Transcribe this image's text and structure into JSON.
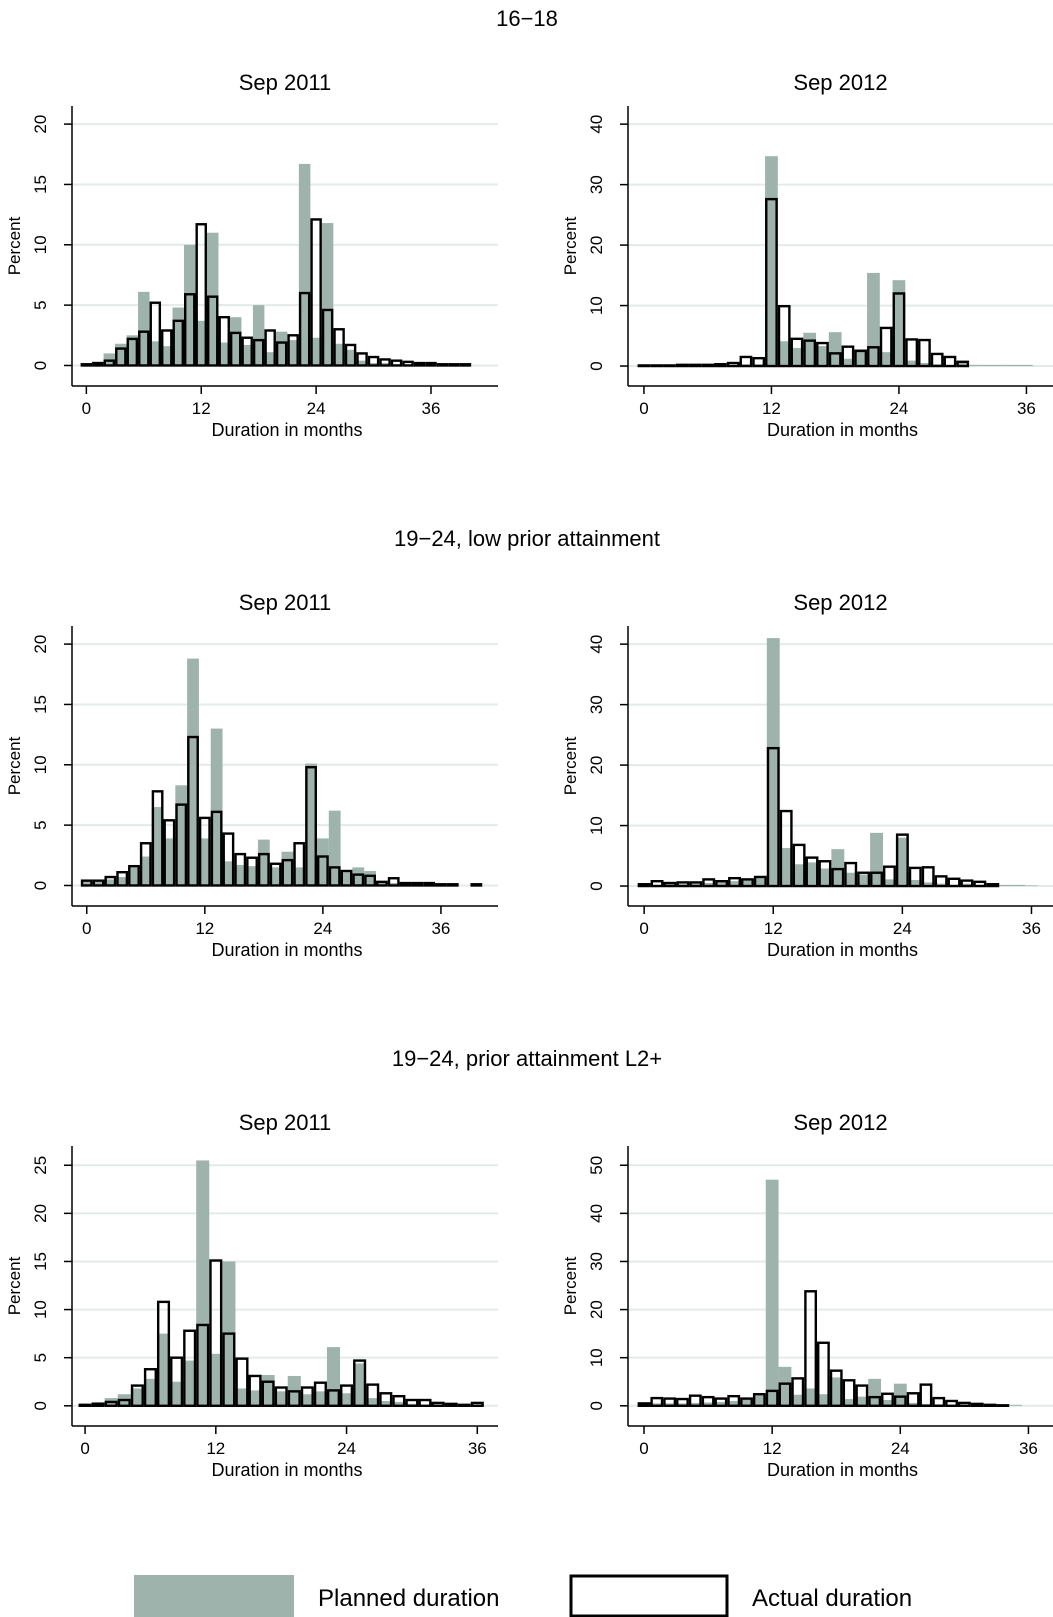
{
  "legend": [
    {
      "label": "Planned duration",
      "color": "#9db3ac"
    },
    {
      "label": "Actual duration",
      "color": "#ffffff",
      "stroke": "#000000"
    }
  ],
  "colors": {
    "planned": "#9db3ac",
    "actual_fill": "#ffffff",
    "actual_stroke": "#000000",
    "grid": "#e3ebea"
  },
  "groups": [
    {
      "title": "16−18"
    },
    {
      "title": "19−24, low prior attainment"
    },
    {
      "title": "19−24, prior attainment L2+"
    }
  ],
  "chart_data": [
    {
      "type": "bar",
      "group": "16−18",
      "title": "Sep 2011",
      "xlabel": "Duration in months",
      "ylabel": "Percent",
      "xlim": [
        -1.5,
        43
      ],
      "ylim": [
        -1.7,
        21.5
      ],
      "xticks": [
        0,
        12,
        24,
        36
      ],
      "yticks": [
        0,
        5,
        10,
        15,
        20
      ],
      "grid": true,
      "bin_width": 1.2,
      "bins": [
        0,
        1.2,
        2.4,
        3.6,
        4.8,
        6,
        7.2,
        8.4,
        9.6,
        10.8,
        12,
        13.2,
        14.4,
        15.6,
        16.8,
        18,
        19.2,
        20.4,
        21.6,
        22.8,
        24,
        25.2,
        26.4,
        27.6,
        28.8,
        30,
        31.2,
        32.4,
        33.6,
        34.8,
        36,
        37.2,
        38.4,
        39.6,
        40.8
      ],
      "series": [
        {
          "name": "Planned duration",
          "values": [
            0.1,
            0.3,
            1,
            1.8,
            2.5,
            6.1,
            2,
            1.6,
            4.8,
            10,
            3.7,
            11,
            1.9,
            4,
            1.7,
            5,
            1.1,
            2.8,
            2.1,
            16.7,
            2.3,
            11.8,
            1.8,
            1.3,
            0.4,
            0.2,
            0.2,
            0.1,
            0.1,
            0.1,
            0.1,
            0.1,
            0,
            0,
            0
          ]
        },
        {
          "name": "Actual duration",
          "values": [
            0.1,
            0.2,
            0.4,
            1.4,
            2.2,
            2.8,
            5.2,
            2.9,
            3.7,
            5.9,
            11.7,
            5.7,
            4,
            2.7,
            2.3,
            2.1,
            2.9,
            1.9,
            2.5,
            6,
            12.1,
            4.6,
            3,
            1.7,
            1,
            0.7,
            0.5,
            0.4,
            0.3,
            0.2,
            0.2,
            0.1,
            0.1,
            0.1,
            0
          ]
        }
      ]
    },
    {
      "type": "bar",
      "group": "16−18",
      "title": "Sep 2012",
      "xlabel": "Duration in months",
      "ylabel": "Percent",
      "xlim": [
        -1.5,
        38.5
      ],
      "ylim": [
        -3.3,
        43
      ],
      "xticks": [
        0,
        12,
        24,
        36
      ],
      "yticks": [
        0,
        10,
        20,
        30,
        40
      ],
      "grid": true,
      "bin_width": 1.2,
      "bins": [
        0,
        1.2,
        2.4,
        3.6,
        4.8,
        6,
        7.2,
        8.4,
        9.6,
        10.8,
        12,
        13.2,
        14.4,
        15.6,
        16.8,
        18,
        19.2,
        20.4,
        21.6,
        22.8,
        24,
        25.2,
        26.4,
        27.6,
        28.8,
        30,
        31.2,
        32.4,
        33.6,
        34.8,
        36
      ],
      "series": [
        {
          "name": "Planned duration",
          "values": [
            0,
            0,
            0,
            0,
            0,
            0,
            0,
            0.1,
            0.3,
            0.3,
            34.7,
            4.1,
            3,
            5.5,
            3.3,
            5.6,
            1.2,
            2.8,
            15.4,
            2.3,
            14.2,
            0.9,
            0.5,
            0.3,
            0.1,
            0.6,
            0.2,
            0.2,
            0.2,
            0.2,
            0.2
          ]
        },
        {
          "name": "Actual duration",
          "values": [
            0.1,
            0.1,
            0.1,
            0.2,
            0.2,
            0.2,
            0.3,
            0.5,
            1.5,
            1.3,
            27.6,
            9.9,
            4.5,
            4.2,
            3.8,
            2.1,
            3.2,
            2.5,
            3.1,
            6.3,
            12,
            4.4,
            4.3,
            2,
            1.5,
            0.7,
            0,
            0,
            0,
            0,
            0
          ]
        }
      ]
    },
    {
      "type": "bar",
      "group": "19−24, low prior attainment",
      "title": "Sep 2011",
      "xlabel": "Duration in months",
      "ylabel": "Percent",
      "xlim": [
        -1.5,
        41.8
      ],
      "ylim": [
        -1.7,
        21.5
      ],
      "xticks": [
        0,
        12,
        24,
        36
      ],
      "yticks": [
        0,
        5,
        10,
        15,
        20
      ],
      "grid": true,
      "bin_width": 1.2,
      "bins": [
        0,
        1.2,
        2.4,
        3.6,
        4.8,
        6,
        7.2,
        8.4,
        9.6,
        10.8,
        12,
        13.2,
        14.4,
        15.6,
        16.8,
        18,
        19.2,
        20.4,
        21.6,
        22.8,
        24,
        25.2,
        26.4,
        27.6,
        28.8,
        30,
        31.2,
        32.4,
        33.6,
        34.8,
        36,
        37.2,
        38.4,
        39.6
      ],
      "series": [
        {
          "name": "Planned duration",
          "values": [
            0.3,
            0.3,
            0.5,
            0.7,
            1.5,
            2.4,
            6.5,
            3.9,
            8.3,
            18.8,
            3.9,
            13,
            2,
            1.7,
            1.6,
            3.8,
            1.5,
            2.8,
            1.5,
            10.1,
            3.9,
            6.2,
            1.1,
            1.5,
            1.2,
            0.3,
            0.2,
            0.2,
            0.1,
            0.1,
            0.1,
            0,
            0,
            0
          ]
        },
        {
          "name": "Actual duration",
          "values": [
            0.4,
            0.4,
            0.7,
            1.1,
            1.6,
            3.5,
            7.8,
            5.4,
            6.7,
            12.3,
            5.6,
            6.1,
            4.3,
            2.6,
            2.3,
            2.6,
            1.8,
            2.1,
            3.5,
            9.8,
            2.4,
            1.5,
            1.2,
            0.9,
            0.8,
            0.3,
            0.6,
            0.2,
            0.2,
            0.2,
            0.1,
            0.1,
            0,
            0.1
          ]
        }
      ]
    },
    {
      "type": "bar",
      "group": "19−24, low prior attainment",
      "title": "Sep 2012",
      "xlabel": "Duration in months",
      "ylabel": "Percent",
      "xlim": [
        -1.5,
        38
      ],
      "ylim": [
        -3.3,
        43
      ],
      "xticks": [
        0,
        12,
        24,
        36
      ],
      "yticks": [
        0,
        10,
        20,
        30,
        40
      ],
      "grid": true,
      "bin_width": 1.2,
      "bins": [
        0,
        1.2,
        2.4,
        3.6,
        4.8,
        6,
        7.2,
        8.4,
        9.6,
        10.8,
        12,
        13.2,
        14.4,
        15.6,
        16.8,
        18,
        19.2,
        20.4,
        21.6,
        22.8,
        24,
        25.2,
        26.4,
        27.6,
        28.8,
        30,
        31.2,
        32.4,
        33.6,
        34.8,
        36
      ],
      "series": [
        {
          "name": "Planned duration",
          "values": [
            0.2,
            0.2,
            0.3,
            0.3,
            0.4,
            0.5,
            0.6,
            0.8,
            1.2,
            1.5,
            41,
            6.3,
            3.6,
            3.9,
            2.9,
            6.1,
            2.2,
            1.9,
            8.8,
            1.1,
            8,
            1,
            0.6,
            0.4,
            0.2,
            0.4,
            0.2,
            0.2,
            0.2,
            0.2,
            0.1
          ]
        },
        {
          "name": "Actual duration",
          "values": [
            0.3,
            0.8,
            0.5,
            0.6,
            0.6,
            1.1,
            0.8,
            1.3,
            1.1,
            1.5,
            22.8,
            12.4,
            6.8,
            4.7,
            4.1,
            2.8,
            3.8,
            2.2,
            2.2,
            3.2,
            8.5,
            3,
            3.1,
            1.6,
            1.2,
            0.9,
            0.7,
            0.3,
            0,
            0,
            0
          ]
        }
      ]
    },
    {
      "type": "bar",
      "group": "19−24, prior attainment L2+",
      "title": "Sep 2011",
      "xlabel": "Duration in months",
      "ylabel": "Percent",
      "xlim": [
        -1.2,
        37.9
      ],
      "ylim": [
        -2.1,
        27
      ],
      "xticks": [
        0,
        12,
        24,
        36
      ],
      "yticks": [
        0,
        5,
        10,
        15,
        20,
        25
      ],
      "grid": true,
      "bin_width": 1.2,
      "bins": [
        0,
        1.2,
        2.4,
        3.6,
        4.8,
        6,
        7.2,
        8.4,
        9.6,
        10.8,
        12,
        13.2,
        14.4,
        15.6,
        16.8,
        18,
        19.2,
        20.4,
        21.6,
        22.8,
        24,
        25.2,
        26.4,
        27.6,
        28.8,
        30,
        31.2,
        32.4,
        33.6,
        34.8,
        36
      ],
      "series": [
        {
          "name": "Planned duration",
          "values": [
            0.2,
            0.4,
            0.8,
            1.2,
            1.8,
            2.8,
            7.5,
            2.5,
            4.7,
            25.5,
            5.4,
            15,
            1.8,
            1.6,
            3.2,
            1.5,
            3.1,
            1.2,
            1.5,
            6.1,
            1.3,
            4.4,
            0.8,
            0.5,
            0.4,
            0.2,
            0.1,
            0.1,
            0.1,
            0.1,
            0
          ]
        },
        {
          "name": "Actual duration",
          "values": [
            0.1,
            0.2,
            0.4,
            0.6,
            2.1,
            3.8,
            10.8,
            5,
            7.8,
            8.4,
            15.1,
            7.5,
            4.9,
            3.1,
            2.5,
            1.9,
            1.5,
            1.9,
            2.4,
            1.6,
            2.1,
            4.7,
            2.2,
            1.3,
            1,
            0.6,
            0.6,
            0.3,
            0.2,
            0.1,
            0.3
          ]
        }
      ]
    },
    {
      "type": "bar",
      "group": "19−24, prior attainment L2+",
      "title": "Sep 2012",
      "xlabel": "Duration in months",
      "ylabel": "Percent",
      "xlim": [
        -1.5,
        38.3
      ],
      "ylim": [
        -4.2,
        54
      ],
      "xticks": [
        0,
        12,
        24,
        36
      ],
      "yticks": [
        0,
        10,
        20,
        30,
        40,
        50
      ],
      "grid": true,
      "bin_width": 1.2,
      "bins": [
        0,
        1.2,
        2.4,
        3.6,
        4.8,
        6,
        7.2,
        8.4,
        9.6,
        10.8,
        12,
        13.2,
        14.4,
        15.6,
        16.8,
        18,
        19.2,
        20.4,
        21.6,
        22.8,
        24,
        25.2,
        26.4,
        27.6,
        28.8,
        30,
        31.2,
        32.4,
        33.6,
        34.8
      ],
      "series": [
        {
          "name": "Planned duration",
          "values": [
            0.7,
            0.5,
            0.5,
            0.5,
            0.6,
            0.7,
            0.8,
            1,
            1.3,
            2.1,
            47,
            8.1,
            2.3,
            3.6,
            2.4,
            5.9,
            1.4,
            1.9,
            5.6,
            1.2,
            4.6,
            0.6,
            0.4,
            0.3,
            0.1,
            0.1,
            0.2,
            0.2,
            0.2,
            0.2
          ]
        },
        {
          "name": "Actual duration",
          "values": [
            0.5,
            1.6,
            1.5,
            1.4,
            2.1,
            1.8,
            1.5,
            2,
            1.5,
            2.4,
            3.1,
            4.6,
            5.7,
            23.8,
            13.1,
            7.3,
            5.3,
            4.2,
            1.8,
            2.5,
            1.9,
            2.6,
            4.4,
            1.6,
            1,
            0.6,
            0.4,
            0.2,
            0.1,
            0
          ]
        }
      ]
    }
  ]
}
